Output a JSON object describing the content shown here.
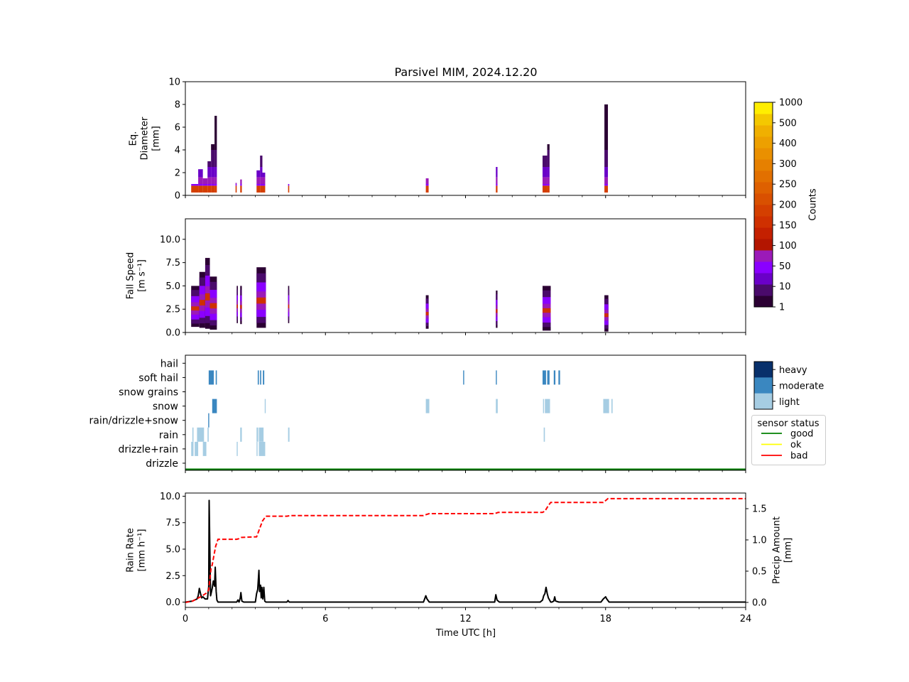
{
  "figure_title": "Parsivel MIM, 2024.12.20",
  "colors": {
    "counts_scale": [
      "#2b0033",
      "#4a0a6b",
      "#6a00c8",
      "#8a00ff",
      "#9b1ab8",
      "#b31500",
      "#c42000",
      "#cf3000",
      "#d43f00",
      "#d95000",
      "#de6000",
      "#e27000",
      "#e68000",
      "#ea9000",
      "#eda000",
      "#f0b000",
      "#f4c800",
      "#ffee00"
    ],
    "intensity": {
      "light": "#a6cde3",
      "moderate": "#3a87c0",
      "heavy": "#08306b"
    },
    "status": {
      "good": "#008000",
      "ok": "#ffff00",
      "bad": "#ff0000"
    },
    "rain_rate_line": "#000000",
    "precip_amount_line": "#ff0000"
  },
  "chart_data": [
    {
      "type": "heatmap",
      "name": "diameter-panel",
      "ylabel": "Eq.\nDiameter\n[mm]",
      "xlim": [
        0,
        24
      ],
      "ylim": [
        0,
        10
      ],
      "yticks": [
        0,
        2,
        4,
        6,
        8,
        10
      ],
      "columns": [
        {
          "start": 0.25,
          "end": 0.55,
          "top": 1.0
        },
        {
          "start": 0.55,
          "end": 0.75,
          "top": 2.3
        },
        {
          "start": 0.75,
          "end": 0.95,
          "top": 1.5
        },
        {
          "start": 0.95,
          "end": 1.1,
          "top": 3.0
        },
        {
          "start": 1.1,
          "end": 1.25,
          "top": 4.5
        },
        {
          "start": 1.25,
          "end": 1.35,
          "top": 7.0
        },
        {
          "start": 2.15,
          "end": 2.2,
          "top": 1.1
        },
        {
          "start": 2.35,
          "end": 2.42,
          "top": 1.4
        },
        {
          "start": 3.05,
          "end": 3.2,
          "top": 2.2
        },
        {
          "start": 3.2,
          "end": 3.3,
          "top": 3.5
        },
        {
          "start": 3.3,
          "end": 3.42,
          "top": 2.0
        },
        {
          "start": 4.4,
          "end": 4.45,
          "top": 1.0
        },
        {
          "start": 10.3,
          "end": 10.42,
          "top": 1.5
        },
        {
          "start": 13.3,
          "end": 13.37,
          "top": 2.5
        },
        {
          "start": 15.3,
          "end": 15.5,
          "top": 3.5
        },
        {
          "start": 15.5,
          "end": 15.6,
          "top": 4.5
        },
        {
          "start": 17.95,
          "end": 18.1,
          "top": 8.0
        }
      ]
    },
    {
      "type": "heatmap",
      "name": "fall-speed-panel",
      "ylabel": "Fall Speed\n[m s⁻¹]",
      "xlim": [
        0,
        24
      ],
      "ylim": [
        0,
        12.2
      ],
      "yticks": [
        0.0,
        2.5,
        5.0,
        7.5,
        10.0
      ],
      "ytick_labels": [
        "0.0",
        "2.5",
        "5.0",
        "7.5",
        "10.0"
      ],
      "columns": [
        {
          "start": 0.25,
          "end": 0.6,
          "low": 0.6,
          "high": 5.0
        },
        {
          "start": 0.6,
          "end": 0.85,
          "low": 0.5,
          "high": 6.5
        },
        {
          "start": 0.85,
          "end": 1.05,
          "low": 0.4,
          "high": 8.0
        },
        {
          "start": 1.05,
          "end": 1.35,
          "low": 0.3,
          "high": 6.0
        },
        {
          "start": 2.2,
          "end": 2.25,
          "low": 1.0,
          "high": 5.0
        },
        {
          "start": 2.35,
          "end": 2.42,
          "low": 0.9,
          "high": 5.0
        },
        {
          "start": 3.05,
          "end": 3.45,
          "low": 0.5,
          "high": 7.0
        },
        {
          "start": 4.4,
          "end": 4.45,
          "low": 1.0,
          "high": 5.0
        },
        {
          "start": 10.3,
          "end": 10.42,
          "low": 0.4,
          "high": 4.0
        },
        {
          "start": 13.3,
          "end": 13.37,
          "low": 0.5,
          "high": 4.5
        },
        {
          "start": 15.3,
          "end": 15.65,
          "low": 0.2,
          "high": 5.0
        },
        {
          "start": 17.95,
          "end": 18.12,
          "low": 0.1,
          "high": 4.0
        }
      ]
    },
    {
      "type": "heatmap",
      "name": "weather-code-panel",
      "categories": [
        "drizzle",
        "drizzle+rain",
        "rain",
        "rain/drizzle+snow",
        "snow",
        "snow grains",
        "soft hail",
        "hail"
      ],
      "xlim": [
        0,
        24
      ],
      "intensity_legend": [
        "heavy",
        "moderate",
        "light"
      ],
      "status_legend_title": "sensor status",
      "status_legend": [
        "good",
        "ok",
        "bad"
      ],
      "sensor_status": [
        {
          "start": 0,
          "end": 24,
          "status": "good"
        }
      ],
      "events": [
        {
          "cat": "drizzle+rain",
          "start": 0.25,
          "end": 0.35,
          "level": "light"
        },
        {
          "cat": "drizzle+rain",
          "start": 0.4,
          "end": 0.55,
          "level": "light"
        },
        {
          "cat": "drizzle+rain",
          "start": 0.75,
          "end": 0.9,
          "level": "light"
        },
        {
          "cat": "drizzle+rain",
          "start": 2.2,
          "end": 2.24,
          "level": "light"
        },
        {
          "cat": "drizzle+rain",
          "start": 3.05,
          "end": 3.08,
          "level": "light"
        },
        {
          "cat": "drizzle+rain",
          "start": 3.15,
          "end": 3.42,
          "level": "light"
        },
        {
          "cat": "rain",
          "start": 0.3,
          "end": 0.35,
          "level": "light"
        },
        {
          "cat": "rain",
          "start": 0.5,
          "end": 0.8,
          "level": "light"
        },
        {
          "cat": "rain",
          "start": 0.95,
          "end": 1.0,
          "level": "light"
        },
        {
          "cat": "rain",
          "start": 2.35,
          "end": 2.42,
          "level": "light"
        },
        {
          "cat": "rain",
          "start": 3.05,
          "end": 3.12,
          "level": "light"
        },
        {
          "cat": "rain",
          "start": 3.15,
          "end": 3.35,
          "level": "light"
        },
        {
          "cat": "rain",
          "start": 4.4,
          "end": 4.46,
          "level": "light"
        },
        {
          "cat": "rain",
          "start": 15.35,
          "end": 15.4,
          "level": "light"
        },
        {
          "cat": "rain/drizzle+snow",
          "start": 0.98,
          "end": 1.02,
          "level": "moderate"
        },
        {
          "cat": "snow",
          "start": 1.15,
          "end": 1.35,
          "level": "moderate"
        },
        {
          "cat": "snow",
          "start": 3.4,
          "end": 3.43,
          "level": "light"
        },
        {
          "cat": "snow",
          "start": 10.3,
          "end": 10.45,
          "level": "light"
        },
        {
          "cat": "snow",
          "start": 13.3,
          "end": 13.38,
          "level": "light"
        },
        {
          "cat": "snow",
          "start": 15.32,
          "end": 15.36,
          "level": "light"
        },
        {
          "cat": "snow",
          "start": 15.4,
          "end": 15.62,
          "level": "light"
        },
        {
          "cat": "snow",
          "start": 17.9,
          "end": 18.15,
          "level": "light"
        },
        {
          "cat": "snow",
          "start": 18.25,
          "end": 18.3,
          "level": "light"
        },
        {
          "cat": "soft hail",
          "start": 1.0,
          "end": 1.22,
          "level": "moderate"
        },
        {
          "cat": "soft hail",
          "start": 1.3,
          "end": 1.35,
          "level": "moderate"
        },
        {
          "cat": "soft hail",
          "start": 3.1,
          "end": 3.15,
          "level": "moderate"
        },
        {
          "cat": "soft hail",
          "start": 3.2,
          "end": 3.25,
          "level": "moderate"
        },
        {
          "cat": "soft hail",
          "start": 3.32,
          "end": 3.38,
          "level": "moderate"
        },
        {
          "cat": "soft hail",
          "start": 11.9,
          "end": 11.93,
          "level": "moderate"
        },
        {
          "cat": "soft hail",
          "start": 13.3,
          "end": 13.33,
          "level": "moderate"
        },
        {
          "cat": "soft hail",
          "start": 15.3,
          "end": 15.45,
          "level": "moderate"
        },
        {
          "cat": "soft hail",
          "start": 15.5,
          "end": 15.6,
          "level": "moderate"
        },
        {
          "cat": "soft hail",
          "start": 15.78,
          "end": 15.85,
          "level": "moderate"
        },
        {
          "cat": "soft hail",
          "start": 15.98,
          "end": 16.05,
          "level": "moderate"
        }
      ]
    },
    {
      "type": "line",
      "name": "rain-panel",
      "xlabel": "Time UTC [h]",
      "ylabel": "Rain Rate\n[mm h⁻¹]",
      "y2label": "Precip Amount\n[mm]",
      "xlim": [
        0,
        24
      ],
      "ylim": [
        -0.5,
        10.3
      ],
      "y2lim": [
        -0.08,
        1.75
      ],
      "xticks": [
        0,
        6,
        12,
        18,
        24
      ],
      "yticks": [
        0.0,
        2.5,
        5.0,
        7.5,
        10.0
      ],
      "ytick_labels": [
        "0.0",
        "2.5",
        "5.0",
        "7.5",
        "10.0"
      ],
      "y2ticks": [
        0.0,
        0.5,
        1.0,
        1.5
      ],
      "y2tick_labels": [
        "0.0",
        "0.5",
        "1.0",
        "1.5"
      ],
      "series": [
        {
          "name": "rain rate",
          "x": [
            0,
            0.3,
            0.4,
            0.5,
            0.55,
            0.6,
            0.65,
            0.7,
            0.75,
            0.85,
            0.95,
            1.0,
            1.02,
            1.05,
            1.08,
            1.1,
            1.15,
            1.2,
            1.25,
            1.28,
            1.32,
            1.35,
            1.4,
            2.0,
            2.2,
            2.25,
            2.3,
            2.35,
            2.38,
            2.42,
            2.5,
            3.0,
            3.05,
            3.1,
            3.15,
            3.18,
            3.22,
            3.25,
            3.28,
            3.32,
            3.36,
            3.4,
            3.45,
            4.35,
            4.4,
            4.45,
            10.2,
            10.3,
            10.35,
            10.45,
            13.25,
            13.3,
            13.35,
            13.45,
            15.2,
            15.3,
            15.35,
            15.4,
            15.45,
            15.5,
            15.55,
            15.6,
            15.65,
            15.7,
            15.78,
            15.82,
            15.86,
            16.0,
            17.8,
            17.9,
            18.0,
            18.05,
            18.15,
            24
          ],
          "y": [
            0,
            0.1,
            0.2,
            0.3,
            0.6,
            1.3,
            0.8,
            0.4,
            0.5,
            0.3,
            0.3,
            1.5,
            9.6,
            5.0,
            0.6,
            0.8,
            1.3,
            2.0,
            1.5,
            3.3,
            1.0,
            0.2,
            0,
            0,
            0,
            0.2,
            0,
            0.4,
            0.9,
            0.1,
            0,
            0,
            0.8,
            1.2,
            3.0,
            1.0,
            1.6,
            0.4,
            1.4,
            0.3,
            1.4,
            0.1,
            0,
            0,
            0.15,
            0,
            0,
            0.6,
            0.3,
            0,
            0,
            0.7,
            0.2,
            0,
            0,
            0.2,
            0.6,
            0.8,
            1.4,
            0.8,
            0.4,
            0.2,
            0,
            0,
            0.1,
            0.5,
            0.1,
            0,
            0,
            0.3,
            0.5,
            0.3,
            0,
            0
          ]
        },
        {
          "name": "precip amount",
          "axis": "right",
          "x": [
            0,
            0.3,
            0.5,
            0.7,
            0.9,
            1.0,
            1.1,
            1.15,
            1.2,
            1.3,
            1.4,
            2.2,
            2.3,
            2.4,
            3.05,
            3.15,
            3.3,
            3.45,
            4.35,
            4.5,
            10.2,
            10.35,
            10.45,
            13.25,
            13.4,
            15.3,
            15.4,
            15.55,
            15.65,
            17.9,
            18.0,
            18.1,
            24
          ],
          "y": [
            0.0,
            0.02,
            0.06,
            0.1,
            0.15,
            0.2,
            0.55,
            0.6,
            0.7,
            0.9,
            1.01,
            1.01,
            1.02,
            1.04,
            1.05,
            1.15,
            1.3,
            1.38,
            1.38,
            1.39,
            1.39,
            1.41,
            1.42,
            1.42,
            1.44,
            1.44,
            1.46,
            1.55,
            1.6,
            1.6,
            1.63,
            1.66,
            1.66
          ]
        }
      ]
    }
  ],
  "colorbar": {
    "label": "Counts",
    "tick_labels": [
      "1",
      "10",
      "50",
      "100",
      "150",
      "200",
      "250",
      "300",
      "400",
      "500",
      "1000"
    ]
  }
}
